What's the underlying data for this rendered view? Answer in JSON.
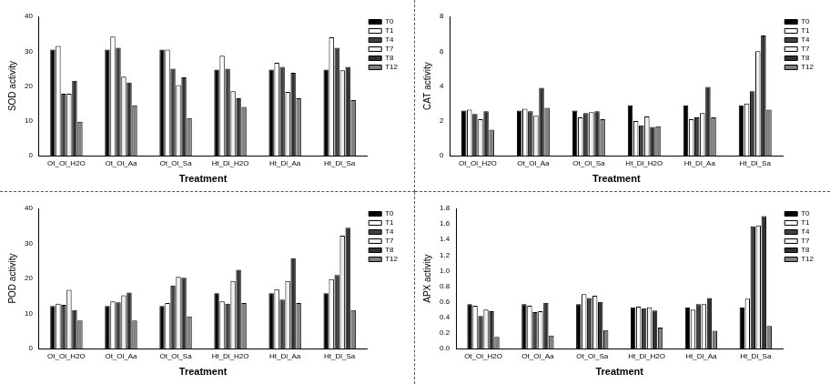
{
  "chart_data": [
    {
      "type": "bar",
      "y_label": "SOD activity",
      "x_label": "Treatment",
      "categories": [
        "Ot_Ol_H2O",
        "Ot_Ol_Aa",
        "Ot_Ol_Sa",
        "Ht_Dl_H2O",
        "Ht_Dl_Aa",
        "Ht_Dl_Sa"
      ],
      "series": [
        {
          "name": "T0",
          "color": "#000000",
          "values": [
            30.5,
            30.5,
            30.5,
            24.7,
            24.7,
            24.7
          ]
        },
        {
          "name": "T1",
          "color": "#ffffff",
          "values": [
            31.5,
            34.2,
            30.5,
            28.7,
            26.7,
            34
          ]
        },
        {
          "name": "T4",
          "color": "#404040",
          "values": [
            17.8,
            31,
            25,
            25,
            25.5,
            31
          ]
        },
        {
          "name": "T7",
          "color": "#f0f0f0",
          "values": [
            17.8,
            22.7,
            20.3,
            18.5,
            18.3,
            24.5
          ]
        },
        {
          "name": "T8",
          "color": "#303030",
          "values": [
            21.5,
            21,
            22.5,
            16.5,
            23.8,
            25.5
          ]
        },
        {
          "name": "T12",
          "color": "#808080",
          "values": [
            9.8,
            14.5,
            10.8,
            14,
            16.5,
            16
          ]
        }
      ],
      "ylim": [
        0,
        40
      ],
      "yticks": [
        0,
        10,
        20,
        30,
        40
      ],
      "grid": false,
      "legend": "top-right"
    },
    {
      "type": "bar",
      "y_label": "CAT activity",
      "x_label": "Treatment",
      "categories": [
        "Ot_Ol_H2O",
        "Ot_Ol_Aa",
        "Ot_Ol_Sa",
        "Ht_Dl_H2O",
        "Ht_Dl_Aa",
        "Ht_Dl_Sa"
      ],
      "series": [
        {
          "name": "T0",
          "color": "#000000",
          "values": [
            2.6,
            2.6,
            2.6,
            2.9,
            2.9,
            2.9
          ]
        },
        {
          "name": "T1",
          "color": "#ffffff",
          "values": [
            2.65,
            2.7,
            2.2,
            2.0,
            2.1,
            3.0
          ]
        },
        {
          "name": "T4",
          "color": "#404040",
          "values": [
            2.4,
            2.55,
            2.45,
            1.75,
            2.2,
            3.7
          ]
        },
        {
          "name": "T7",
          "color": "#f0f0f0",
          "values": [
            2.1,
            2.3,
            2.5,
            2.25,
            2.45,
            6.0
          ]
        },
        {
          "name": "T8",
          "color": "#303030",
          "values": [
            2.55,
            3.9,
            2.55,
            1.65,
            3.95,
            6.9
          ]
        },
        {
          "name": "T12",
          "color": "#808080",
          "values": [
            1.5,
            2.75,
            2.1,
            1.7,
            2.2,
            2.65
          ]
        }
      ],
      "ylim": [
        0,
        8
      ],
      "yticks": [
        0,
        2,
        4,
        6,
        8
      ],
      "grid": false,
      "legend": "top-right"
    },
    {
      "type": "bar",
      "y_label": "POD activity",
      "x_label": "Treatment",
      "categories": [
        "Ot_Ol_H2O",
        "Ot_Ol_Aa",
        "Ot_Ol_Sa",
        "Ht_Dl_H2O",
        "Ht_Dl_Aa",
        "Ht_Dl_Sa"
      ],
      "series": [
        {
          "name": "T0",
          "color": "#000000",
          "values": [
            12.2,
            12.2,
            12.2,
            15.8,
            15.8,
            15.8
          ]
        },
        {
          "name": "T1",
          "color": "#ffffff",
          "values": [
            12.8,
            13.5,
            13,
            13.5,
            17,
            19.8
          ]
        },
        {
          "name": "T4",
          "color": "#404040",
          "values": [
            12.5,
            13.2,
            18,
            12.8,
            14,
            21
          ]
        },
        {
          "name": "T7",
          "color": "#f0f0f0",
          "values": [
            16.8,
            15.2,
            20.5,
            19.3,
            19.3,
            32.2
          ]
        },
        {
          "name": "T8",
          "color": "#303030",
          "values": [
            11,
            16,
            20.2,
            22.5,
            25.8,
            34.5
          ]
        },
        {
          "name": "T12",
          "color": "#808080",
          "values": [
            8,
            8,
            9.2,
            13,
            13,
            11
          ]
        }
      ],
      "ylim": [
        0,
        40
      ],
      "yticks": [
        0,
        10,
        20,
        30,
        40
      ],
      "grid": false,
      "legend": "top-right"
    },
    {
      "type": "bar",
      "y_label": "APX activity",
      "x_label": "Treatment",
      "categories": [
        "Ot_Ol_H2O",
        "Ot_Ol_Aa",
        "Ot_Ol_Sa",
        "Ht_Dl_H2O",
        "Ht_Dl_Aa",
        "Ht_Dl_Sa"
      ],
      "series": [
        {
          "name": "T0",
          "color": "#000000",
          "values": [
            0.57,
            0.57,
            0.57,
            0.53,
            0.53,
            0.53
          ]
        },
        {
          "name": "T1",
          "color": "#ffffff",
          "values": [
            0.55,
            0.55,
            0.7,
            0.54,
            0.5,
            0.64
          ]
        },
        {
          "name": "T4",
          "color": "#404040",
          "values": [
            0.42,
            0.47,
            0.65,
            0.52,
            0.57,
            1.57
          ]
        },
        {
          "name": "T7",
          "color": "#f0f0f0",
          "values": [
            0.5,
            0.48,
            0.68,
            0.53,
            0.57,
            1.58
          ]
        },
        {
          "name": "T8",
          "color": "#303030",
          "values": [
            0.48,
            0.59,
            0.6,
            0.49,
            0.65,
            1.7
          ]
        },
        {
          "name": "T12",
          "color": "#808080",
          "values": [
            0.15,
            0.17,
            0.24,
            0.27,
            0.23,
            0.29
          ]
        }
      ],
      "ylim": [
        0,
        1.8
      ],
      "yticks": [
        {
          "value": 0,
          "label": "0.0"
        },
        0.2,
        0.4,
        0.6,
        0.8,
        {
          "value": 1,
          "label": "1.0"
        },
        1.2,
        1.4,
        1.6,
        1.8
      ],
      "grid": false,
      "legend": "top-right"
    }
  ]
}
